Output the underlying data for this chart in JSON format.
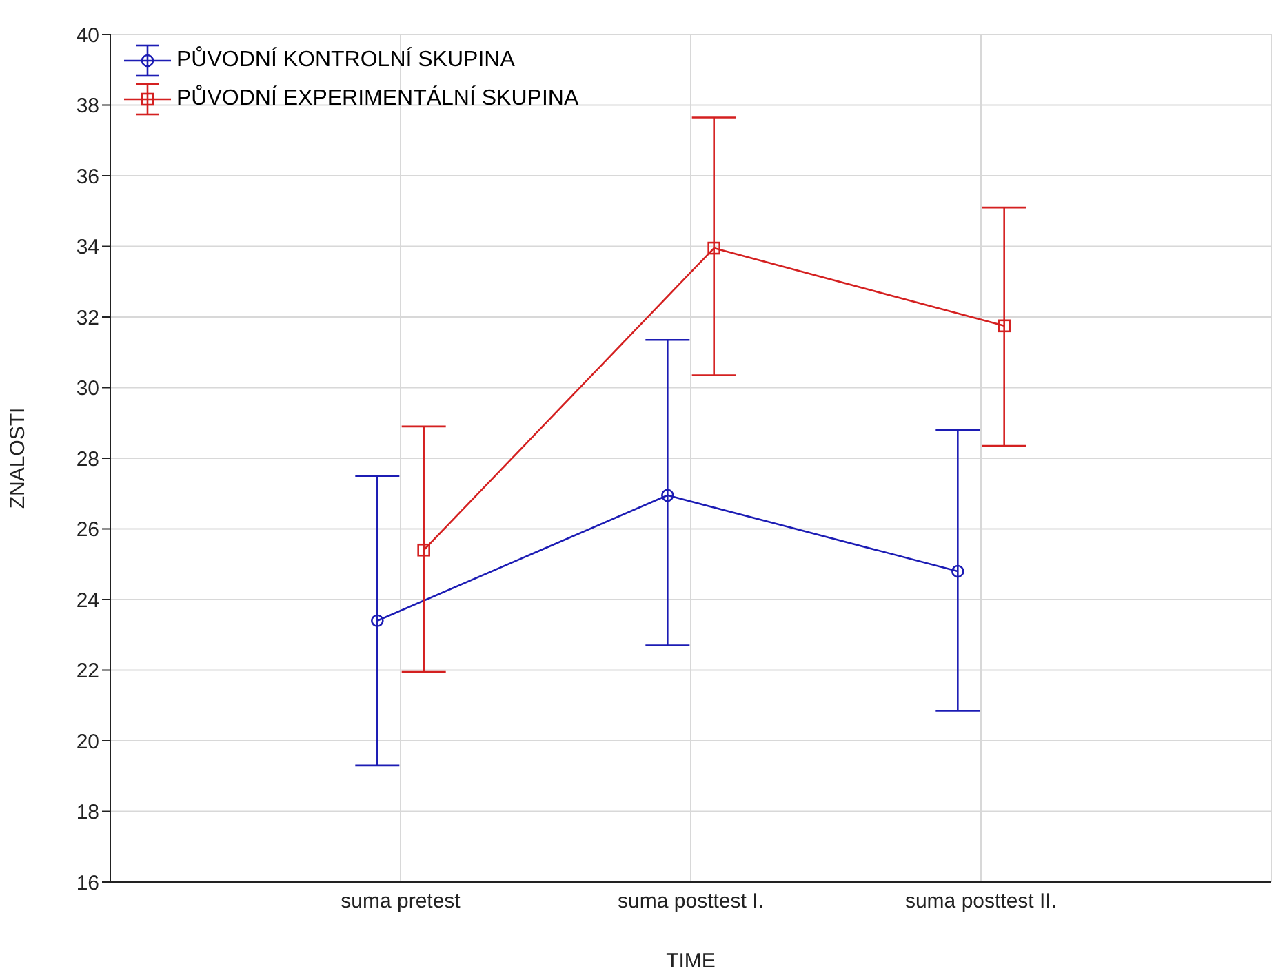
{
  "chart_data": {
    "type": "line",
    "xlabel": "TIME",
    "ylabel": "ZNALOSTI",
    "categories": [
      "suma pretest",
      "suma posttest I.",
      "suma posttest II."
    ],
    "series": [
      {
        "name": "PŮVODNÍ KONTROLNÍ SKUPINA",
        "color": "#1c1cb4",
        "marker": "circle",
        "values": [
          23.4,
          26.95,
          24.8
        ],
        "errors": [
          [
            19.3,
            27.5
          ],
          [
            22.7,
            31.35
          ],
          [
            20.85,
            28.8
          ]
        ]
      },
      {
        "name": "PŮVODNÍ EXPERIMENTÁLNÍ SKUPINA",
        "color": "#d42020",
        "marker": "square",
        "values": [
          25.4,
          33.95,
          31.75
        ],
        "errors": [
          [
            21.95,
            28.9
          ],
          [
            30.35,
            37.65
          ],
          [
            28.35,
            35.1
          ]
        ]
      }
    ],
    "ylim": [
      16,
      40
    ],
    "yticks": [
      16,
      18,
      20,
      22,
      24,
      26,
      28,
      30,
      32,
      34,
      36,
      38,
      40
    ],
    "grid": true,
    "legend": "top left"
  }
}
